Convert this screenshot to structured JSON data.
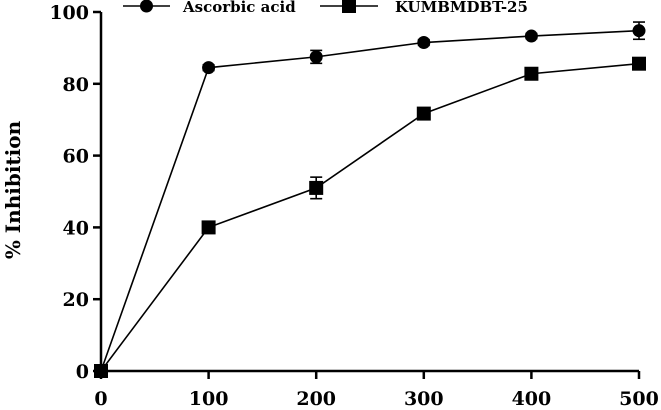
{
  "chart_data": {
    "type": "line",
    "title": "",
    "xlabel": "",
    "ylabel": "% Inhibition",
    "x": [
      0,
      100,
      200,
      300,
      400,
      500
    ],
    "xlim": [
      0,
      500
    ],
    "ylim": [
      0,
      100
    ],
    "xticks": [
      "0",
      "100",
      "200",
      "300",
      "400",
      "500"
    ],
    "yticks": [
      "0",
      "20",
      "40",
      "60",
      "80",
      "100"
    ],
    "grid": false,
    "legend_position": "top",
    "series": [
      {
        "name": "Ascorbic acid",
        "marker": "circle",
        "values": [
          0,
          84.5,
          87.5,
          91.5,
          93.3,
          94.8
        ],
        "errors": [
          0,
          0.8,
          1.8,
          0.8,
          0.7,
          2.4
        ]
      },
      {
        "name": "KUMBMDBT-25",
        "marker": "square",
        "values": [
          0,
          40,
          51,
          71.7,
          82.8,
          85.6
        ],
        "errors": [
          0,
          0.8,
          3.0,
          0.8,
          0.8,
          0.8
        ]
      }
    ]
  }
}
